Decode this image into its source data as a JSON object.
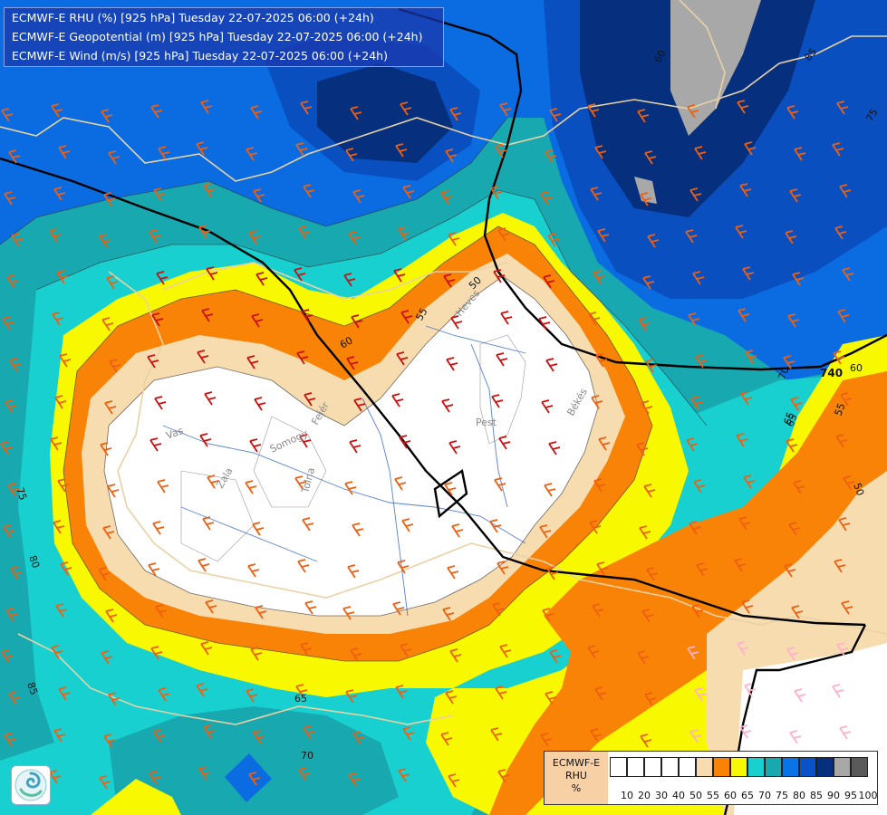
{
  "header": {
    "lines": [
      "ECMWF-E RHU (%) [925 hPa] Tuesday 22-07-2025 06:00 (+24h)",
      "ECMWF-E Geopotential (m) [925 hPa] Tuesday 22-07-2025 06:00 (+24h)",
      "ECMWF-E Wind (m/s) [925 hPa] Tuesday 22-07-2025 06:00 (+24h)"
    ]
  },
  "map_labels": {
    "regions": [
      "Heves",
      "Pest",
      "Békés",
      "Vas",
      "Zala",
      "Somogy",
      "Tolna",
      "Fejér"
    ],
    "contours": [
      "50",
      "55",
      "60",
      "60",
      "65",
      "70",
      "75",
      "75",
      "80",
      "85",
      "85",
      "65",
      "55",
      "50",
      "60",
      "65",
      "70"
    ],
    "geopotential": "740"
  },
  "legend": {
    "title_lines": [
      "ECMWF-E",
      "RHU",
      "%"
    ],
    "ticks": [
      "10",
      "20",
      "30",
      "40",
      "50",
      "55",
      "60",
      "65",
      "70",
      "75",
      "80",
      "85",
      "90",
      "95",
      "100"
    ],
    "colors": [
      "#ffffff",
      "#ffffff",
      "#ffffff",
      "#ffffff",
      "#ffffff",
      "#f7dcb0",
      "#f98307",
      "#f8f800",
      "#19d0d0",
      "#17a8b0",
      "#0a74e6",
      "#0a52c8",
      "#06307e",
      "#a8a8a8",
      "#5a5a5a"
    ]
  },
  "colors": {
    "water_blue": "#2a60c8",
    "border_tan": "#e8d2a6",
    "wind_red": "#cc1010",
    "wind_orange": "#ee6010",
    "wind_pink": "#ffb0cc"
  }
}
